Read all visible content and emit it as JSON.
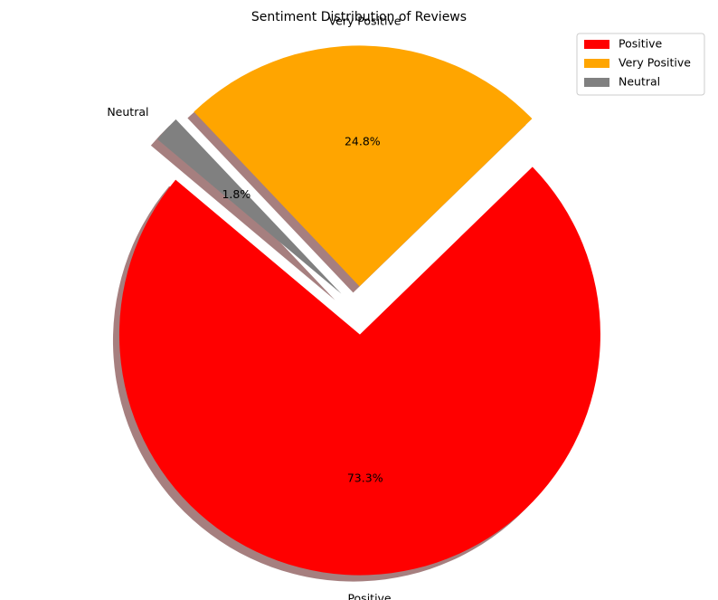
{
  "chart_data": {
    "type": "pie",
    "title": "Sentiment Distribution of Reviews",
    "categories": [
      "Positive",
      "Very Positive",
      "Neutral"
    ],
    "values": [
      73.3,
      24.8,
      1.8
    ],
    "percent_labels": [
      "73.3%",
      "24.8%",
      "1.8%"
    ],
    "colors": [
      "#ff0000",
      "#ffa500",
      "#808080"
    ],
    "exploded": [
      true,
      true,
      true
    ],
    "shadow": true,
    "start_angle_deg": 140,
    "legend": {
      "placement": "top-right",
      "entries": [
        "Positive",
        "Very Positive",
        "Neutral"
      ]
    }
  }
}
